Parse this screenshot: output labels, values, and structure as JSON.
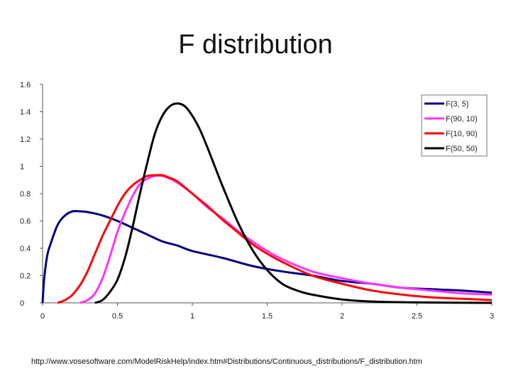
{
  "slide": {
    "title": "F distribution",
    "source": "http://www.vosesoftware.com/ModelRiskHelp/index.htm#Distributions/Continuous_distributions/F_distribution.htm"
  },
  "chart_data": {
    "type": "line",
    "title": "F distribution",
    "xlabel": "",
    "ylabel": "",
    "xlim": [
      0,
      3
    ],
    "ylim": [
      0,
      1.6
    ],
    "x_ticks": [
      "0",
      "0.5",
      "1",
      "1.5",
      "2",
      "2.5",
      "3"
    ],
    "y_ticks": [
      "0",
      "0.2",
      "0.4",
      "0.6",
      "0.8",
      "1",
      "1.2",
      "1.4",
      "1.6"
    ],
    "grid": false,
    "legend_position": "top-right",
    "series": [
      {
        "name": "F(3, 5)",
        "color": "#000080",
        "x": [
          0.01,
          0.03,
          0.05,
          0.1,
          0.15,
          0.2,
          0.25,
          0.3,
          0.4,
          0.5,
          0.6,
          0.7,
          0.8,
          0.9,
          1.0,
          1.2,
          1.4,
          1.6,
          1.8,
          2.0,
          2.2,
          2.4,
          2.6,
          2.8,
          3.0
        ],
        "y": [
          0.17,
          0.34,
          0.42,
          0.57,
          0.64,
          0.67,
          0.67,
          0.665,
          0.64,
          0.6,
          0.55,
          0.5,
          0.45,
          0.42,
          0.38,
          0.33,
          0.27,
          0.23,
          0.2,
          0.16,
          0.14,
          0.11,
          0.1,
          0.09,
          0.075
        ]
      },
      {
        "name": "F(90, 10)",
        "color": "#ff33ff",
        "x": [
          0.25,
          0.3,
          0.35,
          0.4,
          0.45,
          0.5,
          0.55,
          0.6,
          0.65,
          0.7,
          0.75,
          0.8,
          0.85,
          0.9,
          1.0,
          1.1,
          1.2,
          1.3,
          1.4,
          1.5,
          1.6,
          1.8,
          2.0,
          2.2,
          2.4,
          2.6,
          2.8,
          3.0
        ],
        "y": [
          0.0,
          0.02,
          0.07,
          0.18,
          0.34,
          0.52,
          0.66,
          0.78,
          0.87,
          0.91,
          0.93,
          0.93,
          0.91,
          0.88,
          0.8,
          0.7,
          0.62,
          0.53,
          0.45,
          0.38,
          0.32,
          0.23,
          0.18,
          0.14,
          0.11,
          0.09,
          0.07,
          0.06
        ]
      },
      {
        "name": "F(10, 90)",
        "color": "#ff0000",
        "x": [
          0.1,
          0.15,
          0.2,
          0.25,
          0.3,
          0.35,
          0.4,
          0.45,
          0.5,
          0.55,
          0.6,
          0.65,
          0.7,
          0.75,
          0.8,
          0.85,
          0.9,
          1.0,
          1.1,
          1.2,
          1.3,
          1.4,
          1.5,
          1.6,
          1.8,
          2.0,
          2.2,
          2.4,
          2.6,
          2.8,
          3.0
        ],
        "y": [
          0.0,
          0.02,
          0.06,
          0.13,
          0.23,
          0.36,
          0.49,
          0.6,
          0.71,
          0.8,
          0.86,
          0.9,
          0.93,
          0.935,
          0.935,
          0.915,
          0.89,
          0.8,
          0.71,
          0.61,
          0.52,
          0.43,
          0.36,
          0.3,
          0.2,
          0.14,
          0.09,
          0.06,
          0.04,
          0.03,
          0.02
        ]
      },
      {
        "name": "F(50, 50)",
        "color": "#000000",
        "x": [
          0.35,
          0.4,
          0.45,
          0.5,
          0.55,
          0.6,
          0.65,
          0.7,
          0.75,
          0.8,
          0.85,
          0.9,
          0.95,
          1.0,
          1.05,
          1.1,
          1.15,
          1.2,
          1.3,
          1.4,
          1.5,
          1.6,
          1.7,
          1.8,
          2.0,
          2.2,
          2.5,
          3.0
        ],
        "y": [
          0.0,
          0.02,
          0.08,
          0.17,
          0.33,
          0.55,
          0.8,
          1.03,
          1.24,
          1.37,
          1.44,
          1.46,
          1.44,
          1.37,
          1.27,
          1.14,
          1.0,
          0.86,
          0.6,
          0.39,
          0.24,
          0.14,
          0.09,
          0.06,
          0.025,
          0.01,
          0.003,
          0.0
        ]
      }
    ]
  }
}
